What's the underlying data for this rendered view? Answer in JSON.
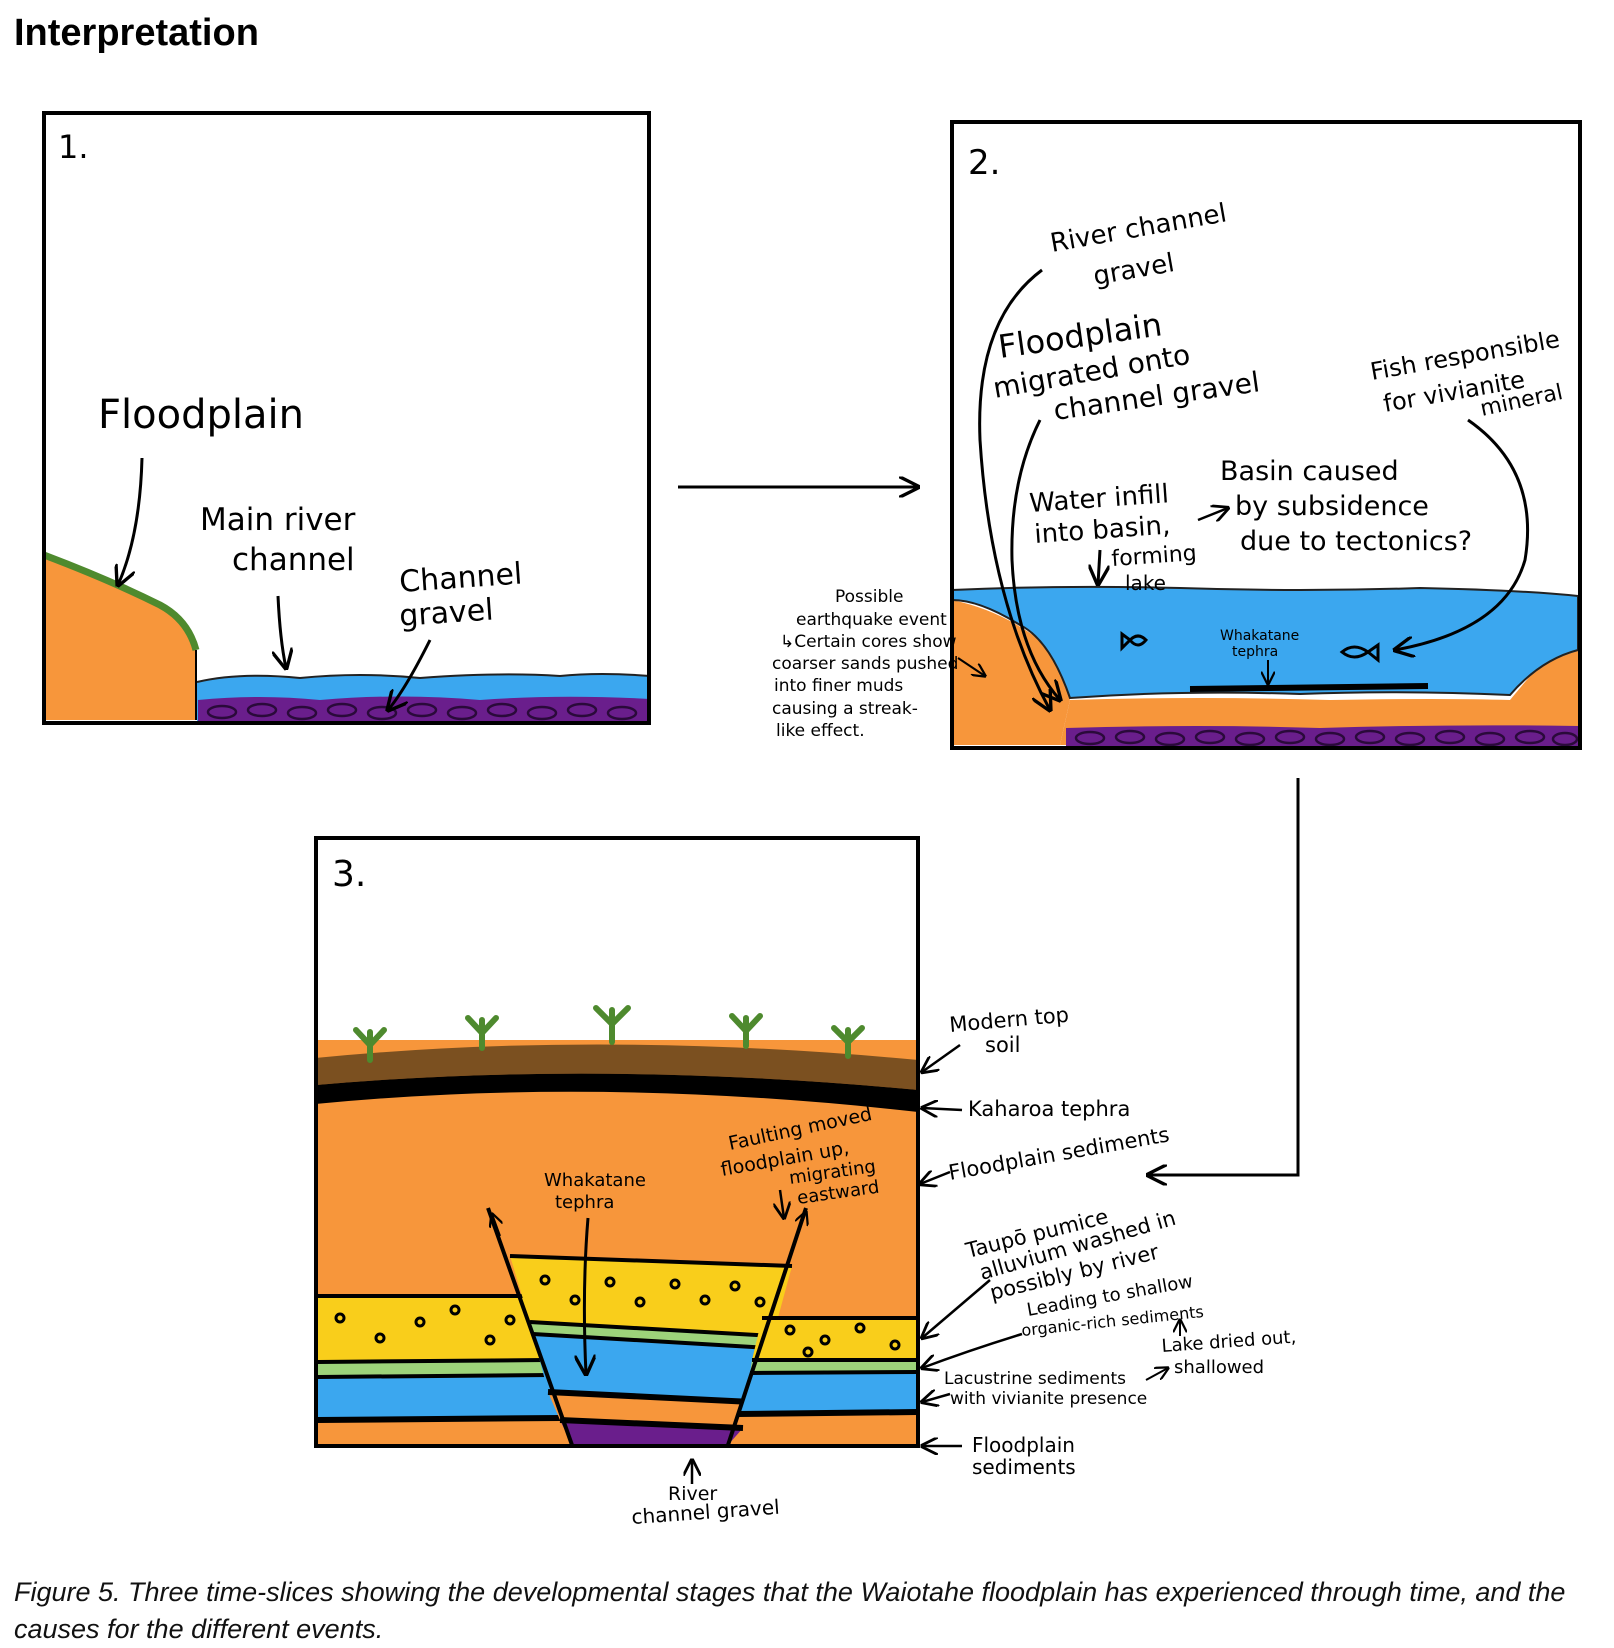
{
  "heading": "Interpretation",
  "colors": {
    "floodplain_orange": "#F7963B",
    "water_blue": "#3BA7EF",
    "gravel_purple": "#6A1E8C",
    "grass_green": "#4E8A2E",
    "pumice_yellow": "#F9CE1B",
    "organic_green": "#9DD37A",
    "topsoil_brown": "#7B5020"
  },
  "panel1": {
    "number": "1.",
    "floodplain": "Floodplain",
    "main_river": [
      "Main river",
      "channel"
    ],
    "channel_gravel": [
      "Channel",
      "gravel"
    ]
  },
  "panel2": {
    "number": "2.",
    "river_gravel": [
      "River channel",
      "gravel"
    ],
    "floodplain_migrated": [
      "Floodplain",
      "migrated onto",
      "channel gravel"
    ],
    "fish": [
      "Fish responsible",
      "for vivianite",
      "mineral"
    ],
    "water_infill": [
      "Water infill",
      "into basin,",
      "forming",
      "lake"
    ],
    "basin": [
      "Basin caused",
      "by subsidence",
      "due to tectonics?"
    ],
    "whakatane": [
      "Whakatane",
      "tephra"
    ],
    "earthquake": [
      "Possible",
      "earthquake event",
      "↳Certain cores show",
      "coarser sands pushed",
      "into finer muds",
      "causing a streak-",
      "like effect."
    ]
  },
  "panel3": {
    "number": "3.",
    "whakatane": [
      "Whakatane",
      "tephra"
    ],
    "faulting": [
      "Faulting moved",
      "floodplain up,",
      "migrating",
      "eastward"
    ],
    "river_gravel": [
      "River",
      "channel gravel"
    ],
    "modern_topsoil": [
      "Modern top",
      "soil"
    ],
    "kaharoa": "Kaharoa tephra",
    "floodplain_sediments_upper": "Floodplain sediments",
    "taupo": [
      "Taupō pumice",
      "alluvium washed in",
      "possibly by river"
    ],
    "shallow": [
      "Leading to shallow",
      "organic-rich sediments"
    ],
    "lake_dried": [
      "Lake dried out,",
      "shallowed"
    ],
    "lacustrine": [
      "Lacustrine sediments",
      "with vivianite presence"
    ],
    "floodplain_sediments_lower": [
      "Floodplain",
      "sediments"
    ]
  },
  "caption": "Figure 5. Three time-slices showing the developmental stages that the Waiotahe floodplain has experienced through time, and the causes for the different events."
}
